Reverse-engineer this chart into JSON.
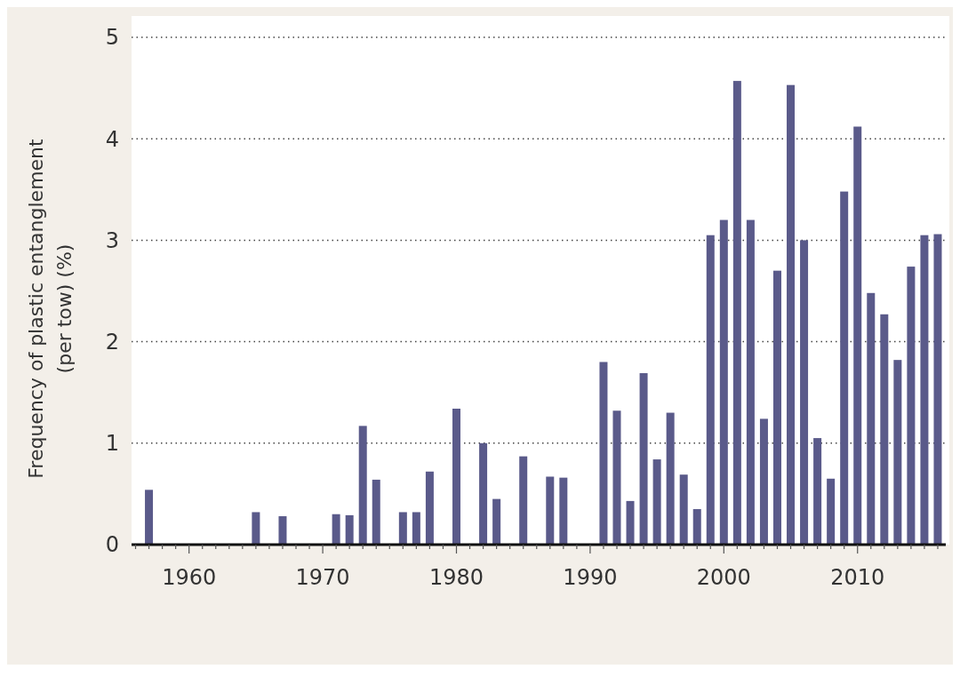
{
  "chart_data": {
    "type": "bar",
    "ylabel": "Frequency of plastic entanglement (per tow) (%)",
    "x": [
      1957,
      1965,
      1967,
      1971,
      1972,
      1973,
      1974,
      1976,
      1977,
      1978,
      1980,
      1982,
      1983,
      1985,
      1987,
      1988,
      1991,
      1992,
      1993,
      1994,
      1995,
      1996,
      1997,
      1998,
      1999,
      2000,
      2001,
      2002,
      2003,
      2004,
      2005,
      2006,
      2007,
      2008,
      2009,
      2010,
      2011,
      2012,
      2013,
      2014,
      2015,
      2016
    ],
    "values": [
      0.54,
      0.32,
      0.28,
      0.3,
      0.29,
      1.17,
      0.64,
      0.32,
      0.32,
      0.72,
      1.34,
      1.0,
      0.45,
      0.87,
      0.67,
      0.66,
      1.8,
      1.32,
      0.43,
      1.69,
      0.84,
      1.3,
      0.69,
      0.35,
      3.05,
      3.2,
      4.57,
      3.2,
      1.24,
      2.7,
      4.53,
      3.0,
      1.05,
      0.65,
      3.48,
      4.12,
      2.48,
      2.27,
      1.82,
      2.74,
      3.05,
      3.06
    ],
    "color": "#5a5a8a",
    "xlim": [
      1955.7,
      2016.6
    ],
    "xticks": [
      {
        "value": 1956,
        "label": null
      },
      {
        "value": 1957,
        "label": null
      },
      {
        "value": 1958,
        "label": null
      },
      {
        "value": 1959,
        "label": null
      },
      1960,
      {
        "value": 1961,
        "label": null
      },
      {
        "value": 1962,
        "label": null
      },
      {
        "value": 1963,
        "label": null
      },
      {
        "value": 1964,
        "label": null
      },
      {
        "value": 1965,
        "label": null
      },
      {
        "value": 1966,
        "label": null
      },
      {
        "value": 1967,
        "label": null
      },
      {
        "value": 1968,
        "label": null
      },
      {
        "value": 1969,
        "label": null
      },
      1970,
      {
        "value": 1971,
        "label": null
      },
      {
        "value": 1972,
        "label": null
      },
      {
        "value": 1973,
        "label": null
      },
      {
        "value": 1974,
        "label": null
      },
      {
        "value": 1975,
        "label": null
      },
      {
        "value": 1976,
        "label": null
      },
      {
        "value": 1977,
        "label": null
      },
      {
        "value": 1978,
        "label": null
      },
      {
        "value": 1979,
        "label": null
      },
      1980,
      {
        "value": 1981,
        "label": null
      },
      {
        "value": 1982,
        "label": null
      },
      {
        "value": 1983,
        "label": null
      },
      {
        "value": 1984,
        "label": null
      },
      {
        "value": 1985,
        "label": null
      },
      {
        "value": 1986,
        "label": null
      },
      {
        "value": 1987,
        "label": null
      },
      {
        "value": 1988,
        "label": null
      },
      {
        "value": 1989,
        "label": null
      },
      1990,
      {
        "value": 1991,
        "label": null
      },
      {
        "value": 1992,
        "label": null
      },
      {
        "value": 1993,
        "label": null
      },
      {
        "value": 1994,
        "label": null
      },
      {
        "value": 1995,
        "label": null
      },
      {
        "value": 1996,
        "label": null
      },
      {
        "value": 1997,
        "label": null
      },
      {
        "value": 1998,
        "label": null
      },
      {
        "value": 1999,
        "label": null
      },
      2000,
      {
        "value": 2001,
        "label": null
      },
      {
        "value": 2002,
        "label": null
      },
      {
        "value": 2003,
        "label": null
      },
      {
        "value": 2004,
        "label": null
      },
      {
        "value": 2005,
        "label": null
      },
      {
        "value": 2006,
        "label": null
      },
      {
        "value": 2007,
        "label": null
      },
      {
        "value": 2008,
        "label": null
      },
      {
        "value": 2009,
        "label": null
      },
      2010,
      {
        "value": 2011,
        "label": null
      },
      {
        "value": 2012,
        "label": null
      },
      {
        "value": 2013,
        "label": null
      },
      {
        "value": 2014,
        "label": null
      },
      {
        "value": 2015,
        "label": null
      },
      {
        "value": 2016,
        "label": null
      }
    ],
    "ylim": [
      0,
      5
    ],
    "yticks": [
      0,
      1,
      2,
      3,
      4,
      5
    ],
    "grid": "y"
  }
}
